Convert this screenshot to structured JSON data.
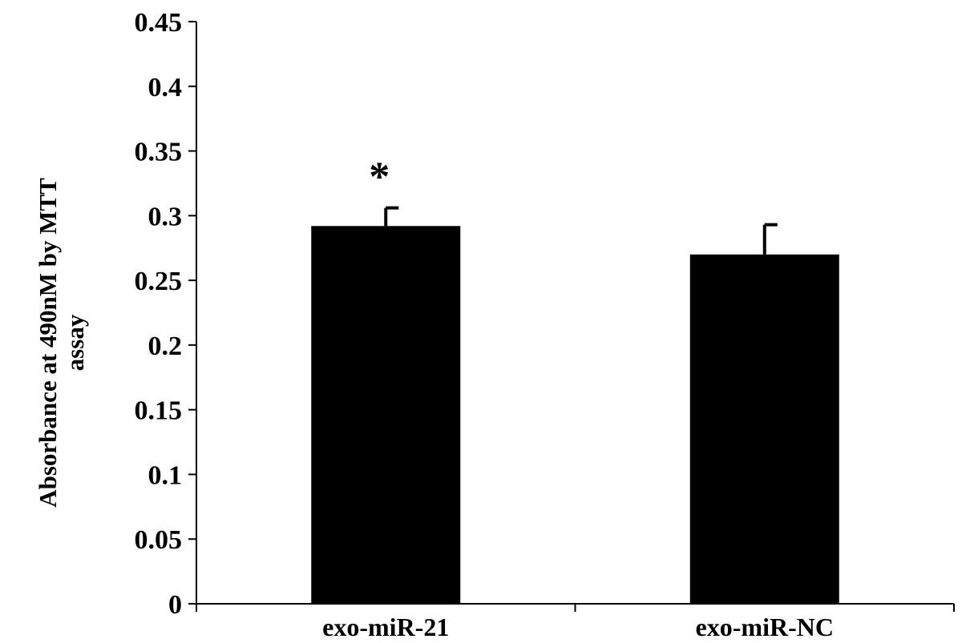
{
  "chart_data": {
    "type": "bar",
    "categories": [
      "exo-miR-21",
      "exo-miR-NC"
    ],
    "values": [
      0.292,
      0.27
    ],
    "errors": [
      0.014,
      0.023
    ],
    "annotations": [
      "*",
      ""
    ],
    "ylabel_lines": [
      "Absorbance at 490nM by MTT",
      "assay"
    ],
    "yticks": [
      "0",
      "0.05",
      "0.1",
      "0.15",
      "0.2",
      "0.25",
      "0.3",
      "0.35",
      "0.4",
      "0.45"
    ],
    "ylim": [
      0,
      0.45
    ],
    "grid": false,
    "bar_color": "#000000"
  }
}
